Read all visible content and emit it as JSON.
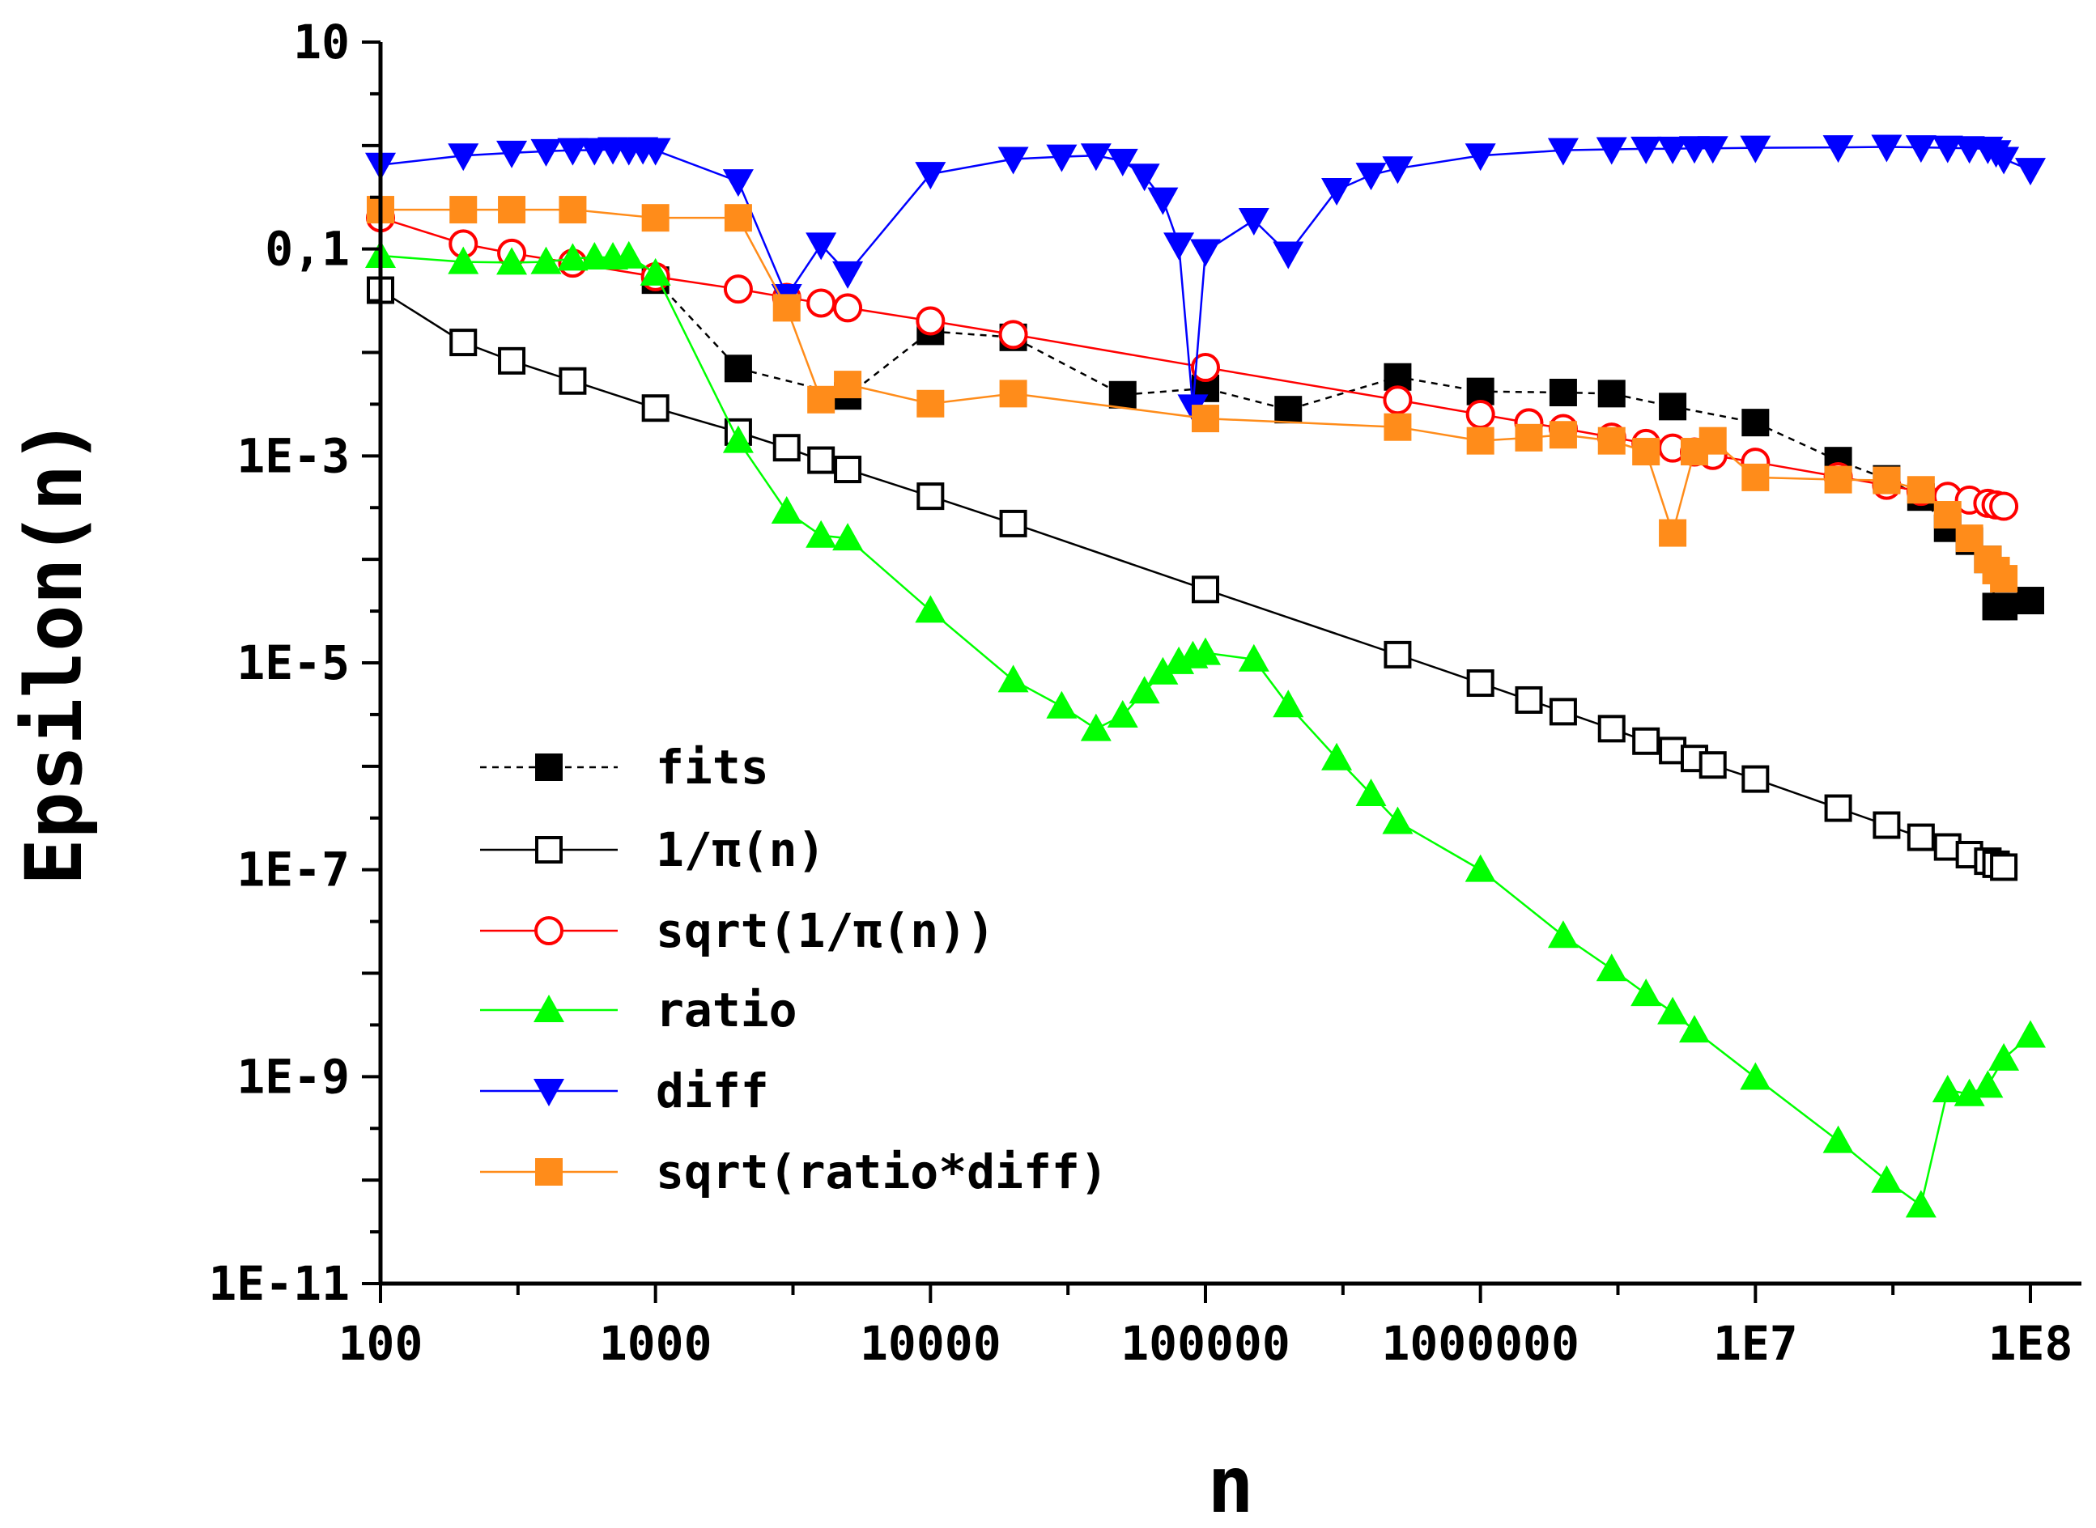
{
  "chart_data": {
    "type": "scatter",
    "title": "",
    "xlabel": "n",
    "ylabel": "Epsilon(n)",
    "xscale": "log",
    "yscale": "log",
    "xlim": [
      100,
      150000000
    ],
    "ylim": [
      1e-11,
      10
    ],
    "grid": false,
    "legend_position": "middle-left",
    "x_ticks": [
      {
        "value": 100,
        "label": "100"
      },
      {
        "value": 1000,
        "label": "1000"
      },
      {
        "value": 10000,
        "label": "10000"
      },
      {
        "value": 100000,
        "label": "100000"
      },
      {
        "value": 1000000,
        "label": "1000000"
      },
      {
        "value": 10000000,
        "label": "1E7"
      },
      {
        "value": 100000000,
        "label": "1E8"
      }
    ],
    "y_ticks": [
      {
        "value": 10,
        "label": "10"
      },
      {
        "value": 0.1,
        "label": "0,1"
      },
      {
        "value": 0.001,
        "label": "1E-3"
      },
      {
        "value": 1e-05,
        "label": "1E-5"
      },
      {
        "value": 1e-07,
        "label": "1E-7"
      },
      {
        "value": 1e-09,
        "label": "1E-9"
      },
      {
        "value": 1e-11,
        "label": "1E-11"
      }
    ],
    "series": [
      {
        "name": "fits",
        "color": "#000000",
        "marker": "square-filled",
        "line": "dashed",
        "x": [
          1000,
          2000,
          5000,
          10000,
          20000,
          50000,
          100000,
          200000,
          500000,
          1000000,
          2000000,
          3000000,
          5000000,
          10000000,
          20000000,
          30000000,
          40000000,
          50000000,
          60000000,
          70000000,
          75000000,
          80000000,
          100000000
        ],
        "y": [
          0.05,
          0.007,
          0.0038,
          0.016,
          0.014,
          0.0039,
          0.0045,
          0.0028,
          0.0058,
          0.0042,
          0.0041,
          0.004,
          0.003,
          0.0021,
          0.0009,
          0.0006,
          0.0004,
          0.0002,
          0.00015,
          0.0001,
          3.5e-05,
          3.5e-05,
          4e-05
        ]
      },
      {
        "name": "1/π(n)",
        "color": "#000000",
        "marker": "square-open",
        "line": "solid",
        "x": [
          100,
          200,
          300,
          500,
          1000,
          2000,
          3000,
          4000,
          5000,
          10000,
          20000,
          100000,
          500000,
          1000000,
          1500000,
          2000000,
          3000000,
          4000000,
          5000000,
          6000000,
          7000000,
          10000000,
          20000000,
          30000000,
          40000000,
          50000000,
          60000000,
          70000000,
          75000000,
          80000000
        ],
        "y": [
          0.04,
          0.0125,
          0.0083,
          0.0053,
          0.0029,
          0.0017,
          0.0012,
          0.00091,
          0.00074,
          0.000408,
          0.000222,
          5.12e-05,
          1.2e-05,
          6.37e-06,
          4.37e-06,
          3.37e-06,
          2.31e-06,
          1.75e-06,
          1.42e-06,
          1.19e-06,
          1.03e-06,
          7.53e-07,
          3.94e-07,
          2.7e-07,
          2.06e-07,
          1.66e-07,
          1.4e-07,
          1.21e-07,
          1.13e-07,
          1.06e-07
        ]
      },
      {
        "name": "sqrt(1/π(n))",
        "color": "#ff0000",
        "marker": "circle-open",
        "line": "solid",
        "x": [
          100,
          200,
          300,
          500,
          1000,
          2000,
          3000,
          4000,
          5000,
          10000,
          20000,
          100000,
          500000,
          1000000,
          1500000,
          2000000,
          3000000,
          4000000,
          5000000,
          6000000,
          7000000,
          10000000,
          20000000,
          30000000,
          40000000,
          50000000,
          60000000,
          70000000,
          75000000,
          80000000
        ],
        "y": [
          0.2,
          0.112,
          0.091,
          0.073,
          0.054,
          0.041,
          0.034,
          0.03,
          0.027,
          0.0202,
          0.0149,
          0.00716,
          0.00347,
          0.00252,
          0.00209,
          0.00184,
          0.00152,
          0.00132,
          0.00119,
          0.00109,
          0.00101,
          0.00087,
          0.00063,
          0.00052,
          0.000454,
          0.000407,
          0.000374,
          0.000348,
          0.000336,
          0.000326
        ]
      },
      {
        "name": "ratio",
        "color": "#00ff00",
        "marker": "triangle-up-filled",
        "line": "solid",
        "x": [
          100,
          200,
          300,
          400,
          500,
          600,
          700,
          800,
          1000,
          2000,
          3000,
          4000,
          5000,
          10000,
          20000,
          30000,
          40000,
          50000,
          60000,
          70000,
          80000,
          90000,
          100000,
          150000,
          200000,
          300000,
          400000,
          500000,
          1000000,
          2000000,
          3000000,
          4000000,
          5000000,
          6000000,
          10000000,
          20000000,
          30000000,
          40000000,
          50000000,
          60000000,
          70000000,
          80000000,
          100000000
        ],
        "y": [
          0.086,
          0.075,
          0.074,
          0.075,
          0.081,
          0.083,
          0.083,
          0.085,
          0.058,
          0.0014,
          0.00029,
          0.00017,
          0.00016,
          3.2e-05,
          6.8e-06,
          3.8e-06,
          2.3e-06,
          3.1e-06,
          5.3e-06,
          8.1e-06,
          1.02e-05,
          1.16e-05,
          1.25e-05,
          1.08e-05,
          3.9e-06,
          1.2e-06,
          5.4e-07,
          2.9e-07,
          1e-07,
          2.3e-08,
          1.1e-08,
          6.3e-09,
          4.2e-09,
          2.8e-09,
          9.8e-10,
          2.4e-10,
          9.9e-11,
          5.7e-11,
          7.4e-10,
          6.8e-10,
          8.2e-10,
          1.5e-09,
          2.5e-09
        ]
      },
      {
        "name": "diff",
        "color": "#0000ff",
        "marker": "triangle-down-filled",
        "line": "solid",
        "x": [
          100,
          200,
          300,
          400,
          500,
          600,
          700,
          800,
          900,
          1000,
          2000,
          3000,
          4000,
          5000,
          10000,
          20000,
          30000,
          40000,
          50000,
          60000,
          70000,
          80000,
          90000,
          100000,
          150000,
          200000,
          300000,
          400000,
          500000,
          1000000,
          2000000,
          3000000,
          4000000,
          5000000,
          6000000,
          7000000,
          10000000,
          20000000,
          30000000,
          40000000,
          50000000,
          60000000,
          70000000,
          75000000,
          80000000,
          100000000
        ],
        "y": [
          0.65,
          0.8,
          0.85,
          0.88,
          0.9,
          0.9,
          0.92,
          0.9,
          0.92,
          0.9,
          0.45,
          0.035,
          0.11,
          0.058,
          0.53,
          0.74,
          0.78,
          0.8,
          0.71,
          0.51,
          0.3,
          0.11,
          0.003,
          0.095,
          0.19,
          0.09,
          0.37,
          0.52,
          0.6,
          0.8,
          0.9,
          0.92,
          0.93,
          0.93,
          0.94,
          0.94,
          0.95,
          0.96,
          0.97,
          0.96,
          0.95,
          0.94,
          0.93,
          0.86,
          0.74,
          0.58
        ]
      },
      {
        "name": "sqrt(ratio*diff)",
        "color": "#ff8c1a",
        "marker": "square-filled",
        "line": "solid",
        "x": [
          100,
          200,
          300,
          500,
          1000,
          2000,
          3000,
          4000,
          5000,
          10000,
          20000,
          100000,
          500000,
          1000000,
          1500000,
          2000000,
          3000000,
          4000000,
          5000000,
          6000000,
          7000000,
          10000000,
          20000000,
          30000000,
          40000000,
          50000000,
          60000000,
          70000000,
          75000000,
          80000000
        ],
        "y": [
          0.24,
          0.24,
          0.24,
          0.24,
          0.2,
          0.2,
          0.027,
          0.0035,
          0.0049,
          0.0032,
          0.004,
          0.0023,
          0.0019,
          0.0014,
          0.0015,
          0.0016,
          0.0014,
          0.0011,
          0.00018,
          0.0011,
          0.0014,
          0.00062,
          0.00059,
          0.00058,
          0.00047,
          0.00027,
          0.00016,
          0.0001,
          7.8e-05,
          6.5e-05
        ]
      }
    ]
  }
}
